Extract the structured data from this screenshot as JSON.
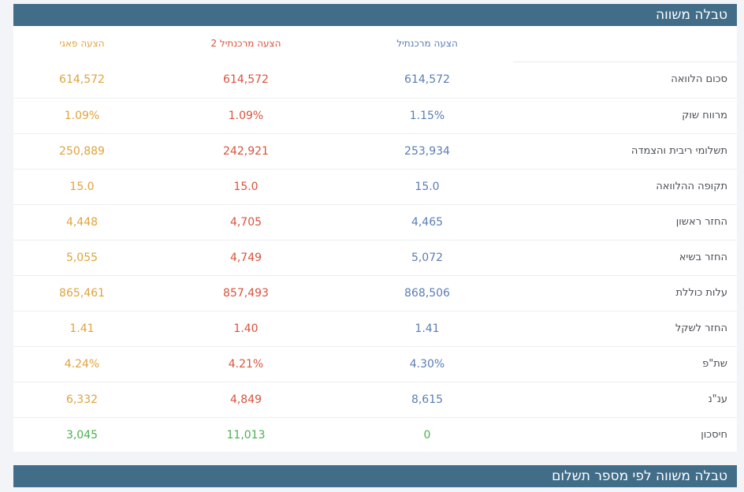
{
  "section1": {
    "title": "טבלה משווה"
  },
  "section2": {
    "title": "טבלה משווה לפי מספר תשלום"
  },
  "colors": {
    "header_bg": "#426d88",
    "col1": "#5a7db5",
    "col2": "#d9523c",
    "col3": "#e0a33c",
    "savings": "#4caf50"
  },
  "columns": [
    "הצעה מרכנתיל",
    "הצעה מרכנתיל 2",
    "הצעה פאגי"
  ],
  "rows": [
    {
      "label": "סכום הלוואה",
      "values": [
        "614,572",
        "614,572",
        "614,572"
      ]
    },
    {
      "label": "מרווח שוק",
      "values": [
        "1.15%",
        "1.09%",
        "1.09%"
      ]
    },
    {
      "label": "תשלומי ריבית והצמדה",
      "values": [
        "253,934",
        "242,921",
        "250,889"
      ]
    },
    {
      "label": "תקופה ההלוואה",
      "values": [
        "15.0",
        "15.0",
        "15.0"
      ]
    },
    {
      "label": "החזר ראשון",
      "values": [
        "4,465",
        "4,705",
        "4,448"
      ]
    },
    {
      "label": "החזר בשיא",
      "values": [
        "5,072",
        "4,749",
        "5,055"
      ]
    },
    {
      "label": "עלות כוללת",
      "values": [
        "868,506",
        "857,493",
        "865,461"
      ]
    },
    {
      "label": "החזר לשקל",
      "values": [
        "1.41",
        "1.40",
        "1.41"
      ]
    },
    {
      "label": "שת\"פ",
      "values": [
        "4.30%",
        "4.21%",
        "4.24%"
      ]
    },
    {
      "label": "ענ\"נ",
      "values": [
        "8,615",
        "4,849",
        "6,332"
      ]
    },
    {
      "label": "חיסכון",
      "values": [
        "0",
        "11,013",
        "3,045"
      ],
      "savings": true
    }
  ]
}
